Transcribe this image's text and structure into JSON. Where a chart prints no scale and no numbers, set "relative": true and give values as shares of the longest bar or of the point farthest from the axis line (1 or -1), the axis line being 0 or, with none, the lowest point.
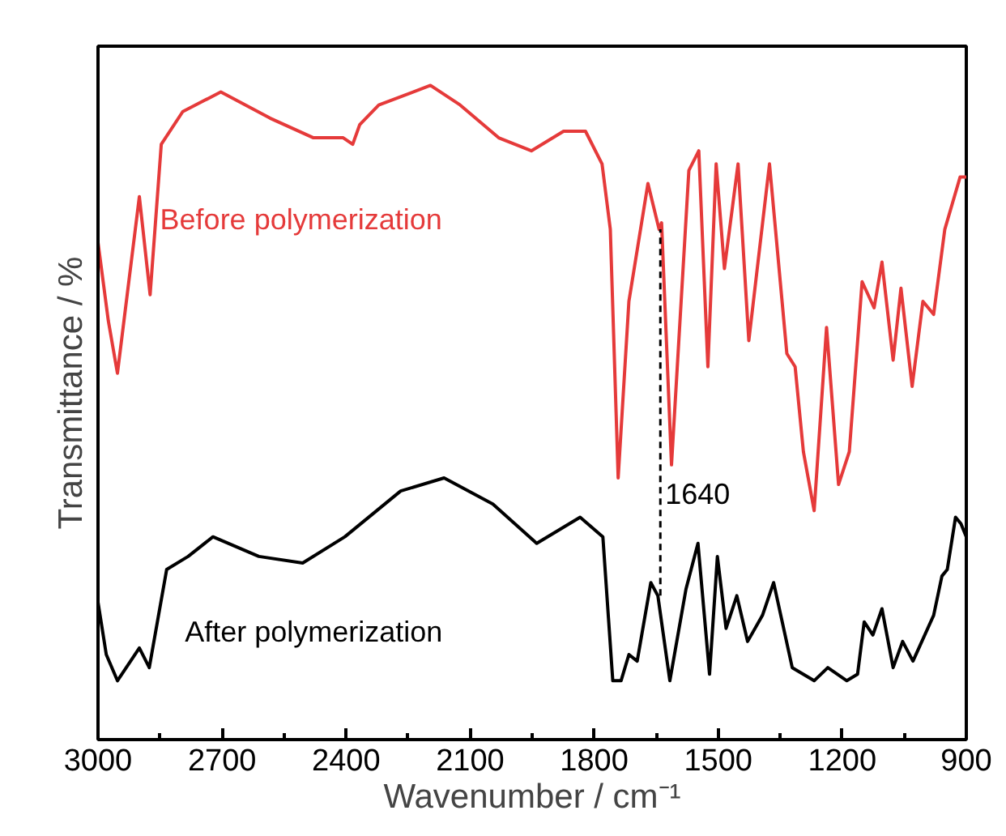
{
  "chart_data": {
    "type": "line",
    "xlabel": "Wavenumber / cm⁻¹",
    "ylabel": "Transmittance / %",
    "relative": true,
    "xlim": [
      3000,
      900
    ],
    "xticks": [
      3000,
      {
        "value": 2850,
        "label": null
      },
      2700,
      {
        "value": 2550,
        "label": null
      },
      2400,
      {
        "value": 2250,
        "label": null
      },
      2100,
      {
        "value": 1950,
        "label": null
      },
      1800,
      {
        "value": 1650,
        "label": null
      },
      1500,
      {
        "value": 1350,
        "label": null
      },
      1200,
      {
        "value": 1050,
        "label": null
      },
      900
    ],
    "tick_labels": "x",
    "grid": false,
    "ref_lines": [
      {
        "axis": "x",
        "value": 1640,
        "label": "1640",
        "line_style": "dashed",
        "color": "#000000"
      }
    ],
    "series": [
      {
        "name": "Before polymerization",
        "color": "#e53a3a",
        "x": [
          3000,
          2975,
          2953,
          2900,
          2874,
          2847,
          2795,
          2703,
          2584,
          2479,
          2407,
          2384,
          2367,
          2321,
          2196,
          2124,
          2031,
          1952,
          1874,
          1821,
          1781,
          1761,
          1742,
          1716,
          1670,
          1643,
          1637,
          1613,
          1571,
          1547,
          1525,
          1505,
          1485,
          1452,
          1426,
          1376,
          1334,
          1314,
          1294,
          1268,
          1238,
          1209,
          1183,
          1152,
          1123,
          1104,
          1077,
          1058,
          1031,
          1005,
          979,
          952,
          915,
          900
        ],
        "values": [
          0.76,
          0.64,
          0.56,
          0.83,
          0.68,
          0.91,
          0.96,
          0.99,
          0.95,
          0.92,
          0.92,
          0.91,
          0.94,
          0.97,
          1.0,
          0.97,
          0.92,
          0.9,
          0.93,
          0.93,
          0.88,
          0.78,
          0.4,
          0.67,
          0.85,
          0.78,
          0.79,
          0.42,
          0.87,
          0.9,
          0.57,
          0.88,
          0.72,
          0.88,
          0.61,
          0.88,
          0.59,
          0.57,
          0.44,
          0.35,
          0.63,
          0.39,
          0.44,
          0.7,
          0.66,
          0.73,
          0.58,
          0.69,
          0.54,
          0.67,
          0.65,
          0.78,
          0.86,
          0.86
        ]
      },
      {
        "name": "After polymerization",
        "color": "#000000",
        "x": [
          3000,
          2980,
          2953,
          2900,
          2876,
          2834,
          2782,
          2722,
          2611,
          2505,
          2403,
          2268,
          2163,
          2045,
          1939,
          1834,
          1779,
          1755,
          1735,
          1716,
          1696,
          1663,
          1646,
          1617,
          1578,
          1549,
          1521,
          1502,
          1481,
          1455,
          1429,
          1393,
          1366,
          1321,
          1268,
          1235,
          1189,
          1163,
          1147,
          1126,
          1104,
          1077,
          1054,
          1029,
          979,
          959,
          946,
          926,
          913,
          900
        ],
        "values": [
          0.21,
          0.13,
          0.09,
          0.14,
          0.11,
          0.26,
          0.28,
          0.31,
          0.28,
          0.27,
          0.31,
          0.38,
          0.4,
          0.36,
          0.3,
          0.34,
          0.31,
          0.09,
          0.09,
          0.13,
          0.12,
          0.24,
          0.22,
          0.09,
          0.23,
          0.3,
          0.1,
          0.28,
          0.17,
          0.22,
          0.15,
          0.19,
          0.24,
          0.11,
          0.09,
          0.11,
          0.09,
          0.1,
          0.18,
          0.16,
          0.2,
          0.11,
          0.15,
          0.12,
          0.19,
          0.25,
          0.26,
          0.34,
          0.33,
          0.31
        ]
      }
    ]
  }
}
